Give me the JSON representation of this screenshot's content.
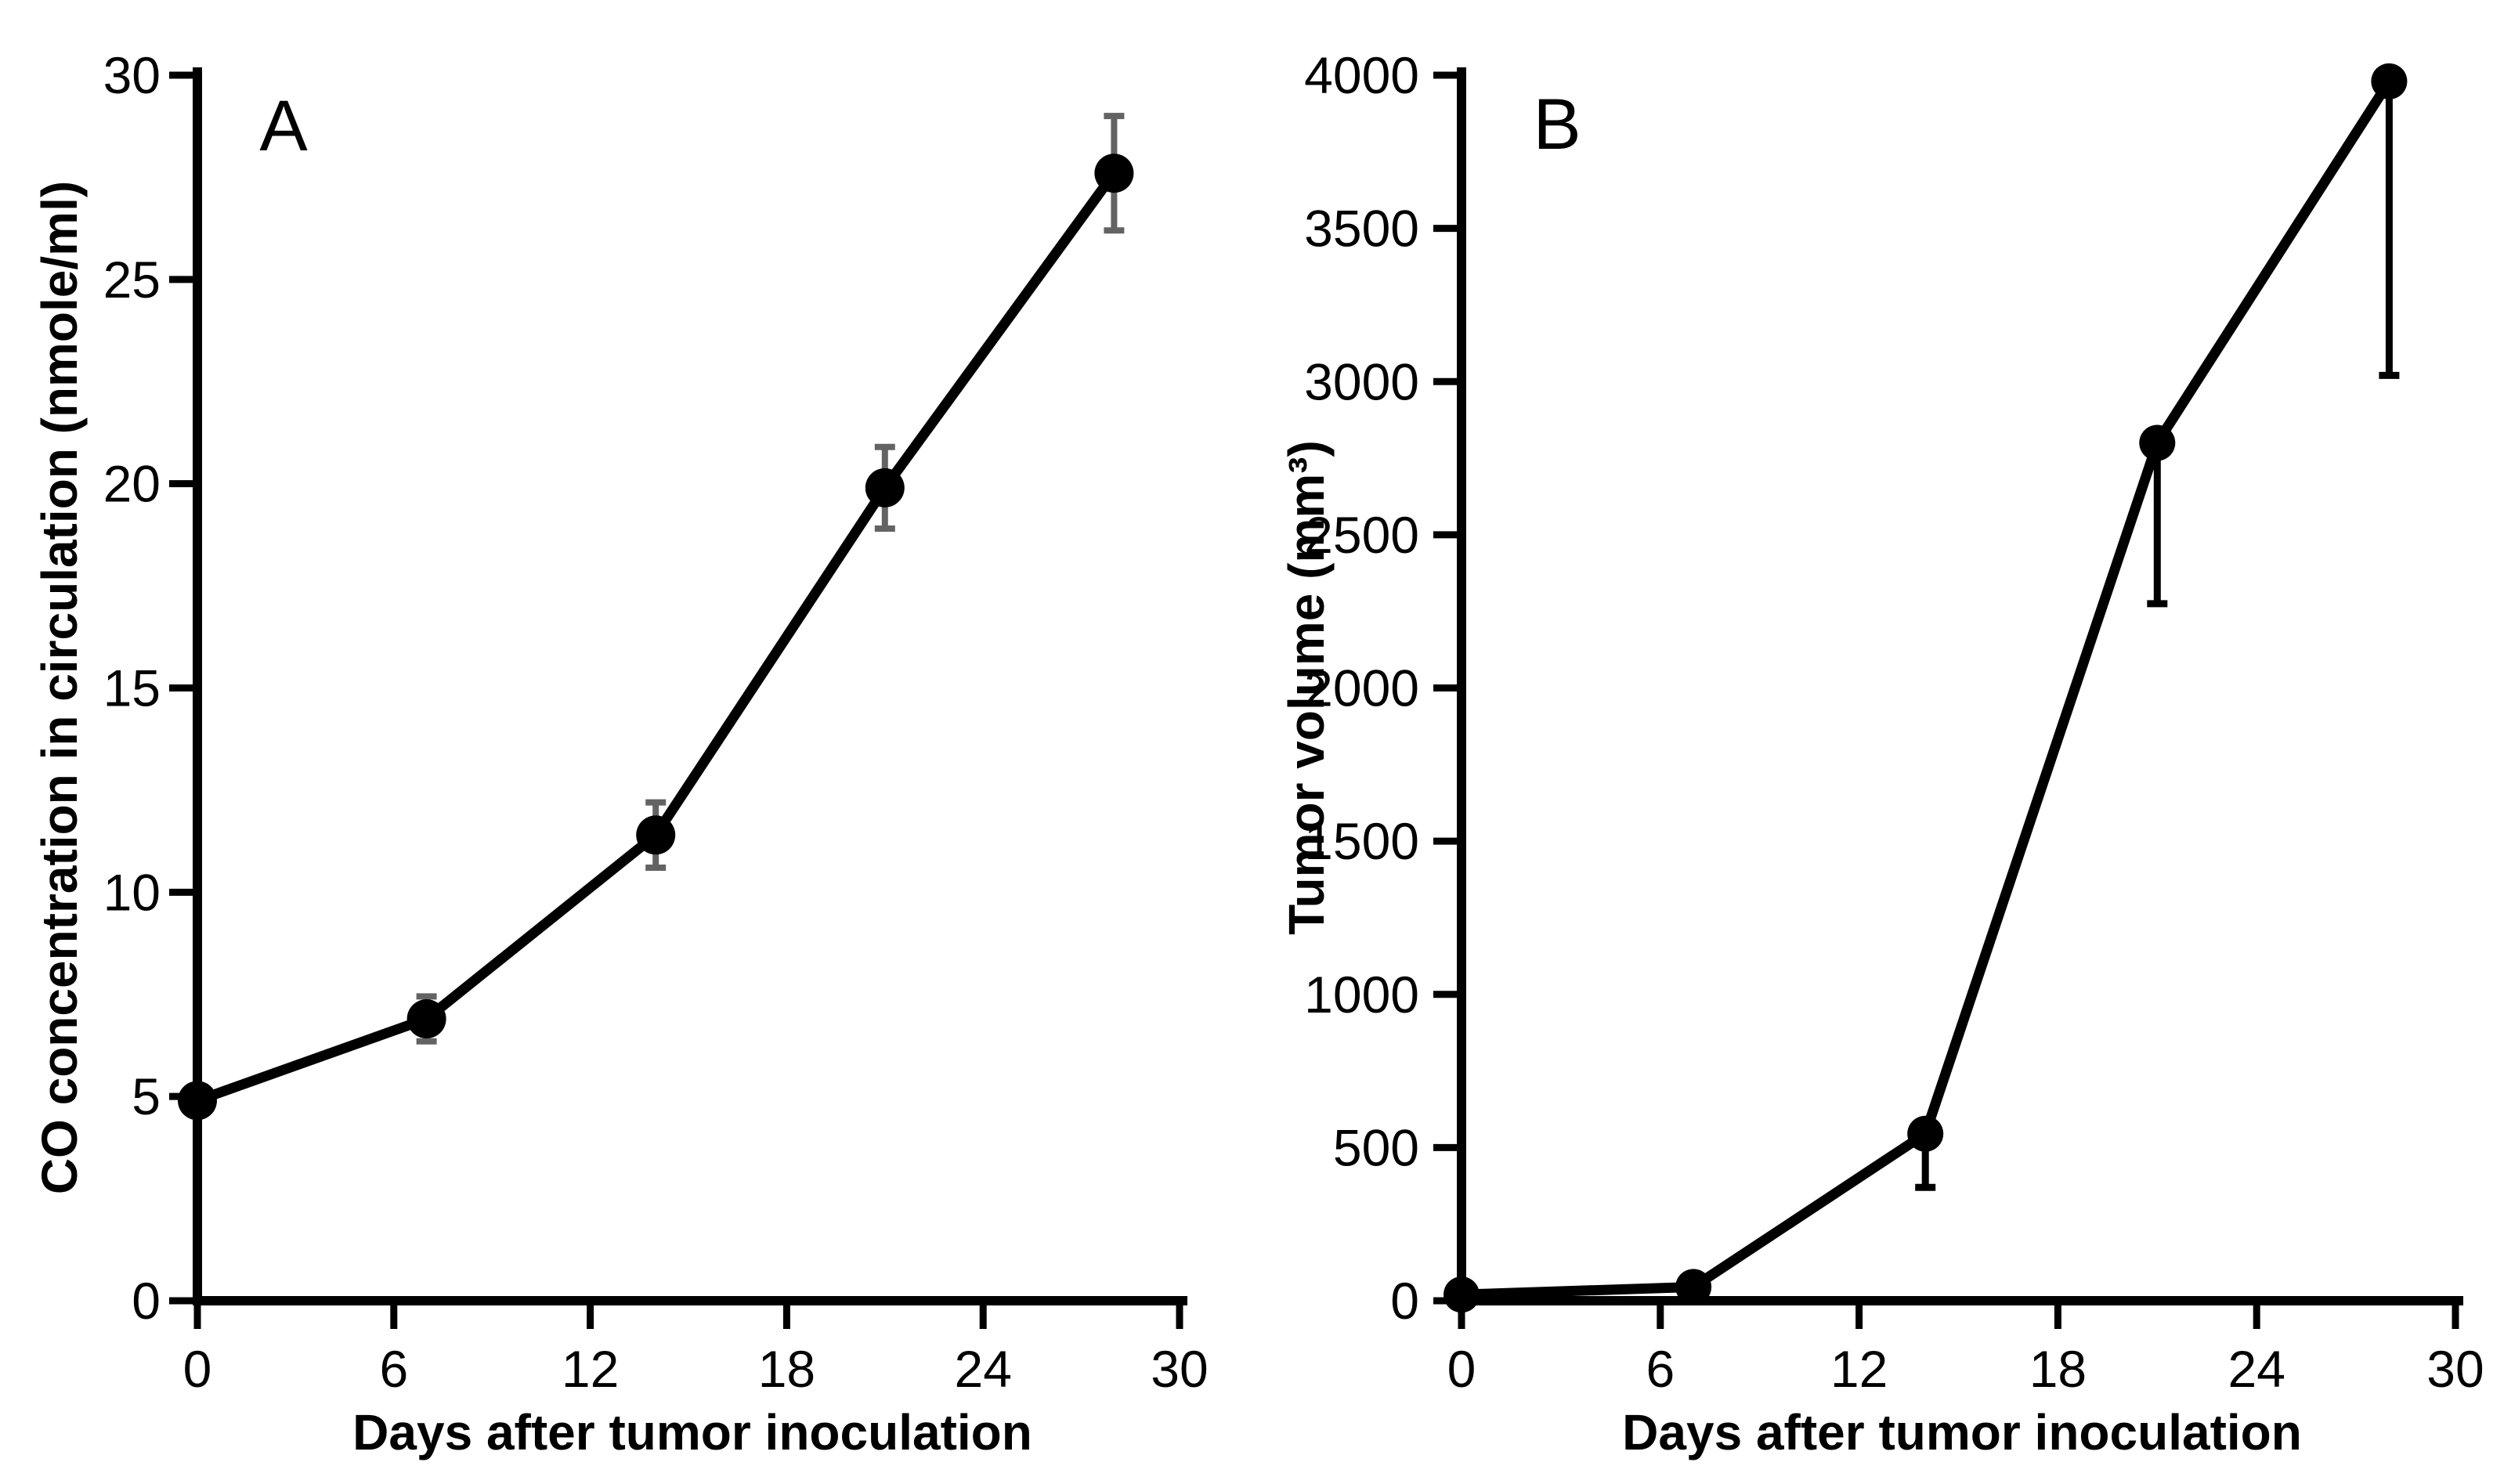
{
  "figure": {
    "background": "#ffffff",
    "series_color": "#000000",
    "panel_a_error_color": "#636363",
    "panel_b_error_color": "#000000"
  },
  "chart_data": [
    {
      "type": "line",
      "panel_label": "A",
      "xlabel": "Days after tumor inoculation",
      "ylabel": "CO concentration in circulation (nmole/ml)",
      "xlim": [
        0,
        30
      ],
      "ylim": [
        0,
        30
      ],
      "xticks": [
        0,
        6,
        12,
        18,
        24,
        30
      ],
      "yticks": [
        0,
        5,
        10,
        15,
        20,
        25,
        30
      ],
      "x": [
        0,
        7,
        14,
        21,
        28
      ],
      "y": [
        4.9,
        6.9,
        11.4,
        19.9,
        27.6
      ],
      "err_plus": [
        0,
        0.55,
        0.8,
        1.0,
        1.4
      ],
      "err_minus": [
        0,
        0.55,
        0.8,
        1.0,
        1.4
      ],
      "marker": "filled-circle",
      "line_color": "#000000",
      "error_color": "#636363",
      "legend": null,
      "grid": false
    },
    {
      "type": "line",
      "panel_label": "B",
      "xlabel": "Days after tumor inoculation",
      "ylabel": "Tumor volume (mm³)",
      "xlim": [
        0,
        30
      ],
      "ylim": [
        0,
        4000
      ],
      "xticks": [
        0,
        6,
        12,
        18,
        24,
        30
      ],
      "yticks": [
        0,
        500,
        1000,
        1500,
        2000,
        2500,
        3000,
        3500,
        4000
      ],
      "x": [
        0,
        7,
        14,
        21,
        28
      ],
      "y": [
        20,
        45,
        545,
        2800,
        3980
      ],
      "err_plus": [
        0,
        0,
        0,
        0,
        0
      ],
      "err_minus": [
        0,
        0,
        175,
        525,
        960
      ],
      "marker": "filled-circle",
      "line_color": "#000000",
      "error_color": "#000000",
      "legend": null,
      "grid": false
    }
  ]
}
